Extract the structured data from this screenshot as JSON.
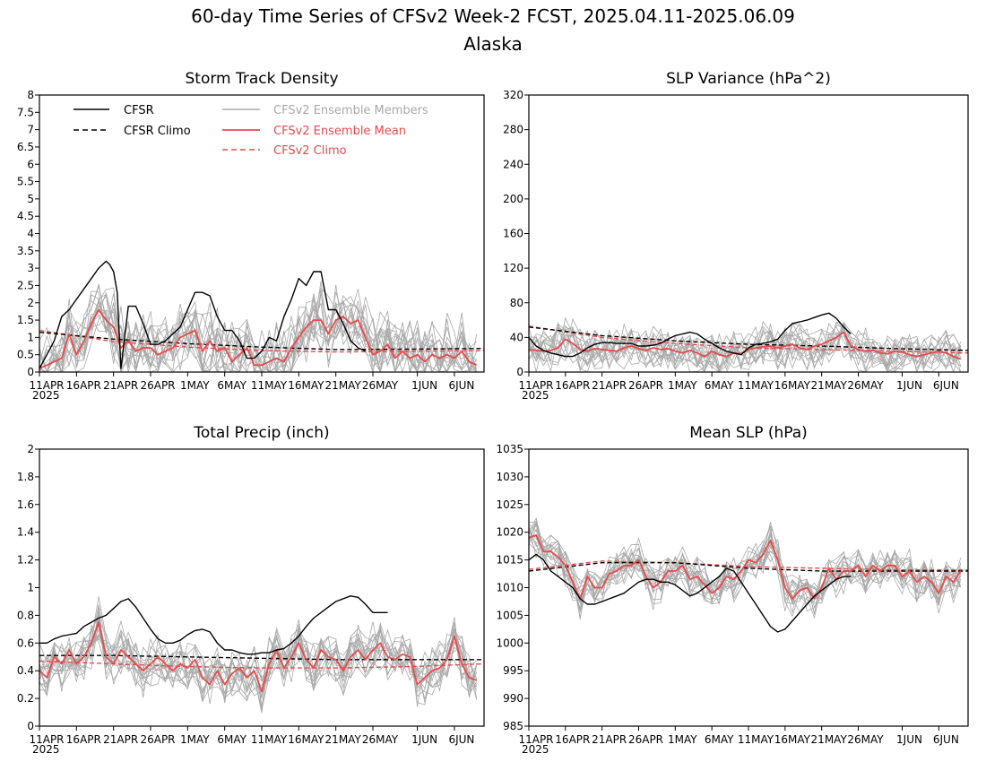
{
  "figure": {
    "title": "60-day Time Series of CFSv2 Week-2 FCST, 2025.04.11-2025.06.09",
    "subtitle": "Alaska",
    "x_tick_labels": [
      "11APR",
      "16APR",
      "21APR",
      "26APR",
      "1MAY",
      "6MAY",
      "11MAY",
      "16MAY",
      "21MAY",
      "26MAY",
      "1JUN",
      "6JUN"
    ],
    "x_tick_days": [
      0,
      5,
      10,
      15,
      20,
      25,
      30,
      35,
      40,
      45,
      51,
      56
    ],
    "x_year_label": "2025",
    "x_range_days": [
      0,
      60
    ]
  },
  "colors": {
    "cfsr": "#000000",
    "cfsr_climo": "#000000",
    "ensemble_members": "#a8a8a8",
    "ensemble_mean": "#e84a4a",
    "cfsv2_climo": "#e84a4a"
  },
  "legend": {
    "cfsr": "CFSR",
    "cfsr_climo": "CFSR Climo",
    "members": "CFSv2 Ensemble Members",
    "mean": "CFSv2 Ensemble Mean",
    "cfsv2_climo": "CFSv2 Climo"
  },
  "chart_data": [
    {
      "type": "line",
      "title": "Storm Track Density",
      "ylim": [
        0,
        8
      ],
      "yticks": [
        0,
        0.5,
        1,
        1.5,
        2,
        2.5,
        3,
        3.5,
        4,
        4.5,
        5,
        5.5,
        6,
        6.5,
        7,
        7.5,
        8
      ],
      "ytick_labels": [
        "0",
        "0.5",
        "1",
        "1.5",
        "2",
        "2.5",
        "3",
        "3.5",
        "4",
        "4.5",
        "5",
        "5.5",
        "6",
        "6.5",
        "7",
        "7.5",
        "8"
      ],
      "cfsr": {
        "x": [
          0,
          1,
          2,
          3,
          4,
          5,
          6,
          7,
          8,
          9,
          9.5,
          10,
          10.5,
          11,
          12,
          13,
          14,
          15,
          16,
          17,
          18,
          19,
          20,
          21,
          22,
          23,
          24,
          25,
          26,
          27,
          28,
          29,
          30,
          31,
          32,
          33,
          34,
          35,
          36,
          37,
          38,
          39,
          40,
          41,
          42,
          43,
          44
        ],
        "y": [
          0.1,
          0.5,
          0.9,
          1.6,
          1.8,
          2.1,
          2.4,
          2.7,
          3.0,
          3.2,
          3.1,
          2.9,
          2.3,
          0.1,
          1.9,
          1.9,
          1.4,
          0.8,
          0.8,
          0.9,
          1.1,
          1.3,
          1.8,
          2.3,
          2.3,
          2.2,
          1.6,
          1.2,
          1.2,
          0.9,
          0.4,
          0.4,
          0.6,
          1.0,
          0.9,
          1.6,
          2.1,
          2.7,
          2.5,
          2.9,
          2.9,
          1.8,
          1.8,
          1.4,
          0.9,
          0.7,
          0.6
        ]
      },
      "cfsr_climo": {
        "x": [
          0,
          10,
          20,
          30,
          40,
          50,
          60
        ],
        "y": [
          1.15,
          0.95,
          0.82,
          0.72,
          0.65,
          0.66,
          0.68
        ]
      },
      "cfsv2_climo": {
        "x": [
          0,
          10,
          20,
          30,
          40,
          50,
          60
        ],
        "y": [
          1.2,
          0.88,
          0.72,
          0.62,
          0.58,
          0.6,
          0.62
        ]
      },
      "ensemble_mean": {
        "x": [
          0,
          1,
          2,
          3,
          4,
          5,
          6,
          7,
          8,
          9,
          10,
          11,
          12,
          13,
          14,
          15,
          16,
          17,
          18,
          19,
          20,
          21,
          22,
          23,
          24,
          25,
          26,
          27,
          28,
          29,
          30,
          31,
          32,
          33,
          34,
          35,
          36,
          37,
          38,
          39,
          40,
          41,
          42,
          43,
          44,
          45,
          46,
          47,
          48,
          49,
          50,
          51,
          52,
          53,
          54,
          55,
          56,
          57,
          58,
          59
        ],
        "y": [
          0.1,
          0.2,
          0.3,
          0.4,
          1.1,
          0.5,
          0.9,
          1.4,
          1.8,
          1.5,
          1.3,
          0.7,
          0.9,
          0.6,
          0.7,
          0.7,
          0.5,
          0.6,
          0.7,
          1.0,
          1.1,
          1.2,
          0.6,
          0.9,
          0.6,
          0.7,
          0.3,
          0.5,
          0.7,
          0.2,
          0.2,
          0.3,
          0.4,
          0.3,
          0.7,
          1.0,
          1.3,
          1.5,
          1.5,
          1.1,
          1.5,
          1.6,
          1.4,
          1.5,
          1.0,
          0.5,
          0.6,
          0.8,
          0.4,
          0.6,
          0.4,
          0.5,
          0.3,
          0.5,
          0.4,
          0.5,
          0.4,
          0.6,
          0.3,
          0.2
        ]
      },
      "member_spread": 0.9,
      "member_seed": 11
    },
    {
      "type": "line",
      "title": "SLP Variance (hPa^2)",
      "ylim": [
        0,
        320
      ],
      "yticks": [
        0,
        40,
        80,
        120,
        160,
        200,
        240,
        280,
        320
      ],
      "ytick_labels": [
        "0",
        "40",
        "80",
        "120",
        "160",
        "200",
        "240",
        "280",
        "320"
      ],
      "cfsr": {
        "x": [
          0,
          1,
          2,
          3,
          4,
          5,
          6,
          7,
          8,
          9,
          10,
          11,
          12,
          13,
          14,
          15,
          16,
          17,
          18,
          19,
          20,
          21,
          22,
          23,
          24,
          25,
          26,
          27,
          28,
          29,
          30,
          31,
          32,
          33,
          34,
          35,
          36,
          37,
          38,
          39,
          40,
          41,
          42,
          43,
          44
        ],
        "y": [
          40,
          30,
          25,
          22,
          20,
          18,
          18,
          22,
          28,
          32,
          34,
          34,
          33,
          33,
          33,
          30,
          30,
          31,
          33,
          38,
          42,
          44,
          46,
          44,
          38,
          33,
          28,
          24,
          22,
          20,
          28,
          32,
          33,
          35,
          38,
          48,
          56,
          58,
          60,
          63,
          66,
          68,
          62,
          52,
          44
        ]
      },
      "cfsr_climo": {
        "x": [
          0,
          10,
          20,
          30,
          40,
          50,
          60
        ],
        "y": [
          52,
          42,
          36,
          32,
          30,
          27,
          25
        ]
      },
      "cfsv2_climo": {
        "x": [
          0,
          10,
          20,
          30,
          40,
          50,
          60
        ],
        "y": [
          53,
          40,
          33,
          28,
          26,
          24,
          22
        ]
      },
      "ensemble_mean": {
        "x": [
          0,
          1,
          2,
          3,
          4,
          5,
          6,
          7,
          8,
          9,
          10,
          11,
          12,
          13,
          14,
          15,
          16,
          17,
          18,
          19,
          20,
          21,
          22,
          23,
          24,
          25,
          26,
          27,
          28,
          29,
          30,
          31,
          32,
          33,
          34,
          35,
          36,
          37,
          38,
          39,
          40,
          41,
          42,
          43,
          44,
          45,
          46,
          47,
          48,
          49,
          50,
          51,
          52,
          53,
          54,
          55,
          56,
          57,
          58,
          59
        ],
        "y": [
          26,
          25,
          24,
          25,
          28,
          38,
          33,
          26,
          24,
          27,
          26,
          25,
          24,
          28,
          30,
          27,
          25,
          28,
          26,
          27,
          24,
          22,
          25,
          22,
          18,
          24,
          20,
          18,
          22,
          21,
          26,
          28,
          29,
          30,
          28,
          30,
          32,
          28,
          26,
          30,
          32,
          36,
          40,
          46,
          30,
          26,
          24,
          25,
          22,
          21,
          24,
          23,
          20,
          18,
          20,
          22,
          24,
          22,
          18,
          15
        ]
      },
      "member_spread": 22,
      "member_seed": 23
    },
    {
      "type": "line",
      "title": "Total Precip (inch)",
      "ylim": [
        0,
        2
      ],
      "yticks": [
        0,
        0.2,
        0.4,
        0.6,
        0.8,
        1,
        1.2,
        1.4,
        1.6,
        1.8,
        2
      ],
      "ytick_labels": [
        "0",
        "0.2",
        "0.4",
        "0.6",
        "0.8",
        "1",
        "1.2",
        "1.4",
        "1.6",
        "1.8",
        "2"
      ],
      "cfsr": {
        "x": [
          0,
          1,
          2,
          3,
          4,
          5,
          6,
          7,
          8,
          9,
          10,
          11,
          12,
          13,
          14,
          15,
          16,
          17,
          18,
          19,
          20,
          21,
          22,
          23,
          24,
          25,
          26,
          27,
          28,
          29,
          30,
          31,
          32,
          33,
          34,
          35,
          36,
          37,
          38,
          39,
          40,
          41,
          42,
          43,
          44,
          45,
          46,
          47
        ],
        "y": [
          0.6,
          0.6,
          0.63,
          0.65,
          0.66,
          0.67,
          0.72,
          0.75,
          0.78,
          0.8,
          0.85,
          0.9,
          0.92,
          0.86,
          0.78,
          0.7,
          0.63,
          0.6,
          0.6,
          0.62,
          0.66,
          0.69,
          0.7,
          0.68,
          0.6,
          0.55,
          0.55,
          0.53,
          0.52,
          0.52,
          0.53,
          0.53,
          0.55,
          0.56,
          0.6,
          0.65,
          0.72,
          0.78,
          0.82,
          0.86,
          0.9,
          0.92,
          0.94,
          0.93,
          0.88,
          0.82,
          0.82,
          0.82
        ]
      },
      "cfsr_climo": {
        "x": [
          0,
          10,
          20,
          30,
          40,
          50,
          60
        ],
        "y": [
          0.51,
          0.51,
          0.5,
          0.49,
          0.48,
          0.48,
          0.48
        ]
      },
      "cfsv2_climo": {
        "x": [
          0,
          10,
          20,
          30,
          40,
          50,
          60
        ],
        "y": [
          0.47,
          0.45,
          0.43,
          0.42,
          0.42,
          0.43,
          0.45
        ]
      },
      "ensemble_mean": {
        "x": [
          0,
          1,
          2,
          3,
          4,
          5,
          6,
          7,
          8,
          9,
          10,
          11,
          12,
          13,
          14,
          15,
          16,
          17,
          18,
          19,
          20,
          21,
          22,
          23,
          24,
          25,
          26,
          27,
          28,
          29,
          30,
          31,
          32,
          33,
          34,
          35,
          36,
          37,
          38,
          39,
          40,
          41,
          42,
          43,
          44,
          45,
          46,
          47,
          48,
          49,
          50,
          51,
          52,
          53,
          54,
          55,
          56,
          57,
          58,
          59
        ],
        "y": [
          0.4,
          0.35,
          0.5,
          0.45,
          0.55,
          0.45,
          0.5,
          0.6,
          0.75,
          0.5,
          0.45,
          0.55,
          0.5,
          0.45,
          0.4,
          0.45,
          0.5,
          0.45,
          0.4,
          0.45,
          0.42,
          0.48,
          0.35,
          0.3,
          0.4,
          0.3,
          0.38,
          0.42,
          0.35,
          0.4,
          0.25,
          0.45,
          0.55,
          0.42,
          0.5,
          0.6,
          0.48,
          0.42,
          0.55,
          0.5,
          0.48,
          0.4,
          0.5,
          0.55,
          0.48,
          0.55,
          0.6,
          0.5,
          0.48,
          0.52,
          0.5,
          0.3,
          0.35,
          0.4,
          0.42,
          0.48,
          0.65,
          0.45,
          0.35,
          0.33
        ]
      },
      "member_spread": 0.16,
      "member_seed": 37
    },
    {
      "type": "line",
      "title": "Mean SLP (hPa)",
      "ylim": [
        985,
        1035
      ],
      "yticks": [
        985,
        990,
        995,
        1000,
        1005,
        1010,
        1015,
        1020,
        1025,
        1030,
        1035
      ],
      "ytick_labels": [
        "985",
        "990",
        "995",
        "1000",
        "1005",
        "1010",
        "1015",
        "1020",
        "1025",
        "1030",
        "1035"
      ],
      "cfsr": {
        "x": [
          0,
          1,
          2,
          3,
          4,
          5,
          6,
          7,
          8,
          9,
          10,
          11,
          12,
          13,
          14,
          15,
          16,
          17,
          18,
          19,
          20,
          21,
          22,
          23,
          24,
          25,
          26,
          27,
          28,
          29,
          30,
          31,
          32,
          33,
          34,
          35,
          36,
          37,
          38,
          39,
          40,
          41,
          42,
          43,
          44
        ],
        "y": [
          1015,
          1016,
          1015,
          1013,
          1012,
          1011,
          1010,
          1008,
          1007,
          1007,
          1007.5,
          1008,
          1008.5,
          1009,
          1010,
          1011,
          1011.5,
          1011.5,
          1011,
          1011,
          1010.5,
          1009.5,
          1008.5,
          1009,
          1010,
          1011,
          1012,
          1013.5,
          1013,
          1011,
          1009,
          1007,
          1005,
          1003,
          1002,
          1002.5,
          1004,
          1005.5,
          1007,
          1008.5,
          1009.5,
          1010.5,
          1011.5,
          1012,
          1012
        ]
      },
      "cfsr_climo": {
        "x": [
          0,
          10,
          20,
          30,
          40,
          50,
          60
        ],
        "y": [
          1013,
          1014.5,
          1014.5,
          1013.5,
          1013,
          1013,
          1013
        ]
      },
      "cfsv2_climo": {
        "x": [
          0,
          10,
          20,
          30,
          40,
          50,
          60
        ],
        "y": [
          1013.3,
          1014.8,
          1014.5,
          1013.8,
          1013.5,
          1013.2,
          1013.2
        ]
      },
      "ensemble_mean": {
        "x": [
          0,
          1,
          2,
          3,
          4,
          5,
          6,
          7,
          8,
          9,
          10,
          11,
          12,
          13,
          14,
          15,
          16,
          17,
          18,
          19,
          20,
          21,
          22,
          23,
          24,
          25,
          26,
          27,
          28,
          29,
          30,
          31,
          32,
          33,
          34,
          35,
          36,
          37,
          38,
          39,
          40,
          41,
          42,
          43,
          44,
          45,
          46,
          47,
          48,
          49,
          50,
          51,
          52,
          53,
          54,
          55,
          56,
          57,
          58,
          59
        ],
        "y": [
          1019,
          1019.5,
          1016.5,
          1016.5,
          1015.5,
          1014,
          1011,
          1008,
          1012,
          1010,
          1010,
          1012.5,
          1013,
          1014,
          1014,
          1015,
          1012,
          1010,
          1011,
          1013,
          1013,
          1014,
          1011.5,
          1012,
          1010.5,
          1009,
          1010,
          1012,
          1011.5,
          1013,
          1015,
          1014.5,
          1016,
          1018.5,
          1015,
          1010,
          1008,
          1009.5,
          1010,
          1008,
          1010,
          1013.5,
          1011.5,
          1013,
          1013,
          1014,
          1012,
          1014,
          1013,
          1014,
          1014,
          1012,
          1013,
          1011,
          1012,
          1011,
          1009,
          1012,
          1011,
          1013
        ]
      },
      "member_spread": 3.2,
      "member_seed": 53
    }
  ]
}
